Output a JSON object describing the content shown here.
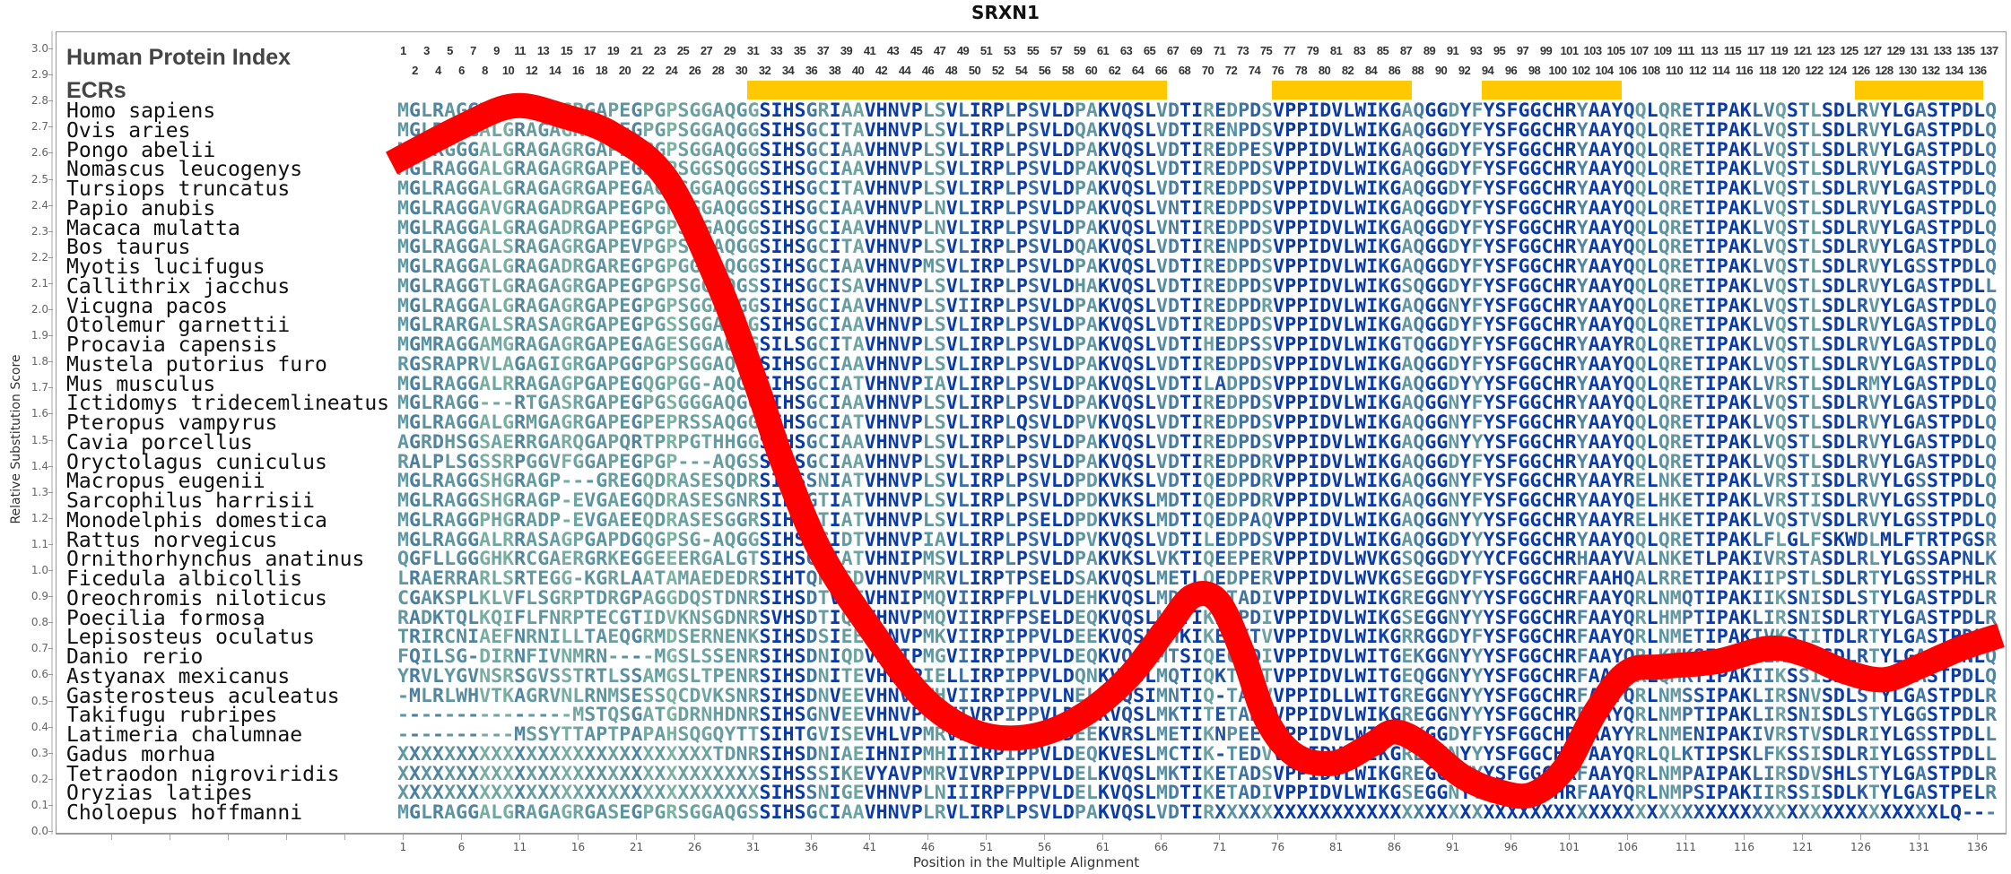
{
  "title": "SRXN1",
  "header": {
    "protein_index_label": "Human Protein Index",
    "ecr_label": "ECRs"
  },
  "alignment_length": 137,
  "colors": {
    "curve": "#FF0000",
    "ecr": "#FFC800",
    "low_conservation": "#8cc4a0",
    "mid_conservation": "#5a90a0",
    "high_conservation": "#0a3aa8"
  },
  "ecrs": [
    [
      31,
      66
    ],
    [
      76,
      87
    ],
    [
      94,
      105
    ],
    [
      126,
      136
    ]
  ],
  "species": [
    {
      "name": "Homo sapiens",
      "seq": "MGLRAGGTLGRAGAGRGAPEGPGPSGGAQGGSIHSGRIAAVHNVPLSVLIRPLPSVLDPAKVQSLVDTIREDPDSVPPIDVLWIKGAQGGDYFYSFGGCHRYAAYQQLQRETIPAKLVQSTLSDLRVYLGASTPDLQ"
    },
    {
      "name": "Ovis aries",
      "seq": "MGLRAGGALGRAGAGRGAPEGPGPSGGAQGGSIHSGCITAVHNVPLSVLIRPLPSVLDQAKVQSLVDTIRENPDSVPPIDVLWIKGAQGGDYFYSFGGCHRYAAYQQLQRETIPAKLVQSTLSDLRVYLGASTPDLQ"
    },
    {
      "name": "Pongo abelii",
      "seq": "MGLRGGGALGRAGAGRGAPEGPGPSGGAQGGSIHSGCIAAVHNVPLSVLIRPLPSVLDPAKVQSLVDTIREDPESVPPIDVLWIKGAQGGDYFYSFGGCHRYAAYQQLQRETIPAKLVQSTLSDLRVYLGASTPDLQ"
    },
    {
      "name": "Nomascus leucogenys",
      "seq": "MGLRAGGALGRAGAGRGAPEGPGPSGGSQGGSIHSGCIAAVHNVPLSVLIRPLPSVLDPAKVQSLVDTIREDPDSVPPIDVLWIKGAQGGDYFYSFGGCHRYAAYQQLQRETIPAKLVQSTLSDLRVYLGASTPDLQ"
    },
    {
      "name": "Tursiops truncatus",
      "seq": "MGLRAGGALGRAGAGRGAPEGAGQSGGAQGGSIHSGCITAVHNVPLSVLIRPLPSVLDPAKVQSLVDTIREDPDSVPPIDVLWIKGAQGGDYFYSFGGCHRYAAYQQLQRETIPAKLVQSTLSDLRVYLGASTPDLQ"
    },
    {
      "name": "Papio anubis",
      "seq": "MGLRAGGAVGRAGADRGAPEGPGPSGGAQGGSIHSGCIAAVHNVPLNVLIRPLPSVLDPAKVQSLVNTIREDPDSVPPIDVLWIKGAQGGDYFYSFGGCHRYAAYQQLQRETIPAKLVQSTLSDLRVYLGASTPDLQ"
    },
    {
      "name": "Macaca mulatta",
      "seq": "MGLRAGGALGRAGADRGAPEGPGPSGGAQGGSIHSGCIAAVHNVPLNVLIRPLPSVLDPAKVQSLVNTIREDPDSVPPIDVLWIKGAQGGDYFYSFGGCHRYAAYQQLQRETIPAKLVQSTLSDLRVYLGASTPDLQ"
    },
    {
      "name": "Bos taurus",
      "seq": "MGLRAGGALSRAGAGRGAPEVPGPSGGAQGGSIHSGCITAVHNVPLSVLIRPLPSVLDQAKVQSLVDTIRENPDSVPPIDVLWIKGAQGGDYFYSFGGCHRYAAYQQLQRETIPAKLVQSTLSDLRVYLGASTPDLQ"
    },
    {
      "name": "Myotis lucifugus",
      "seq": "MGLRAGGALGRAGADRGAREGPGPGGGAQGGSIHSGCIAAVHNVPMSVLIRPLPSVLDPAKVQSLVDTIREDPDSVPPIDVLWIKGAQGGDYFYSFGGCHRYAAYQQLQRETIPAKLVQSTLSDLRVYLGSSTPDLQ"
    },
    {
      "name": "Callithrix jacchus",
      "seq": "MGLRAGGTLGRAGAGRGAPEGPGPSGGAQGSSIHSGCISAVHNVPLSVLIRPLPSVLDHAKVQSLVDTIREDPDSVPPIDVLWIKGSQGGDYFYSFGGCHRYAAYQQLQRETIPAKLVQSTLSDLRVYLGASTPDLL"
    },
    {
      "name": "Vicugna pacos",
      "seq": "MGLRAGGALGRAGAGRGAPEGPGPSGGAQGGSIHSGCIAAVHNVPLSVIIRPLPSVLDPAKVQSLVDTIREDPDRVPPIDVLWIKGAQGGNYFYSFGGCHRYAAYQQLQRETIPAKLVQSTLSDLRVYLGASTPDLQ"
    },
    {
      "name": "Otolemur garnettii",
      "seq": "MGLRARGALSRASAGRGAPEGPGSSGGAHSGSIHSGCIAAVHNVPLSVLIRPLPSVLDPAKVQSLVDTIREDPDSVPPIDVLWIKGAQGGDYFYSFGGCHRYAAYQQLQRETIPAKLVQSTLSDLRVYLGASTPDLQ"
    },
    {
      "name": "Procavia capensis",
      "seq": "MGMRAGGAMGRAGAGRGAPEGAGESGGAQGGSILSGCITAVHNVPLSVLIRPLPSVLDPAKVQSLVDTIHEDPSSVPPIDVLWIKGTQGGDYFYSFGGCHRYAAYRQLQRETIPAKLVQSTLSDLRVYLGASTPDLQ"
    },
    {
      "name": "Mustela putorius furo",
      "seq": "RGSRAPRVLAGAGIGRGAPGGPGPSGGAQGGSIHSGCIAAVHNVPLSVLIRPLPSVLDPAKVQSLVDTIREDPDSVPPIDVLWIKGAQGGDYFYSFGGCHRYAAYQQLQRETIPAKLVQSTLSDLRVYLGASTPDLQ"
    },
    {
      "name": "Mus musculus",
      "seq": "MGLRAGGALRRAGAGPGAPEGQGPGG-AQGGSIHSGCIATVHNVPIAVLIRPLPSVLDPAKVQSLVDTILADPDSVPPIDVLWIKGAQGGDYYYSFGGCHRYAAYQQLQRETIPAKLVRSTLSDLRMYLGASTPDLQ"
    },
    {
      "name": "Ictidomys tridecemlineatus",
      "seq": "MGLRAGG---RTGASRGAPEGPGSGGGAQGGSIHSGCIAAVHNVPLSVLIRPLPSVLDPAKVQSLVDTIREDPDSVPPIDVLWIKGAQGGNYFYSFGGCHRYAAYQQLQRETIPAKLVQSTLSDLRVYLGASTPDLQ"
    },
    {
      "name": "Pteropus vampyrus",
      "seq": "MGLRAGGALGRMGAGRGAPEGPEPRSSAQGGSIHSGCIATVHNVPLSVLIRPLQSVLDPVKVQSLVDTIREDPDSVPPIDVLWIKGAQGGNYFYSFGGCHRYAAYQQLQRETIPAKLVQSTLSDLRVYLGASTPDLQ"
    },
    {
      "name": "Cavia porcellus",
      "seq": "AGRDHSGSAERRGARQGAPQRTPRPGTHHGGSIHSGCIAAVHNVPLSVLIRPLPSVLDPAKVQSLVDTIREDPDSVPPIDVLWIKGAQGGNYYYSFGGCHRYAAYQQLQRETIPAKLVQSTLSDLRVYLGASTPDLQ"
    },
    {
      "name": "Oryctolagus cuniculus",
      "seq": "RALPLSGSSRPGGVFGGAPEGPGP---AQGSSIHSGCIAAVHNVPLSVLIRPLPSVLDPAKVQSLVDTIREDPDRVPPIDVLWIKGAQGGDYFYSFGGCHRYAAYQQLQRETIPAKLVQSTLSDLRVYLGASTPDLQ"
    },
    {
      "name": "Macropus eugenii",
      "seq": "MGLRAGGSHGRAGP---GREGQDRASESQDRSIHSSNIATVHNVPLSVLIRPLPSVLDPDKVKSLVDTIQEDPDRVPPIDVLWIKGAQGGNYFYSFGGCHRYAAYRELNKETIPAKLVRSTISDLRVYLGSSTPDLQ"
    },
    {
      "name": "Sarcophilus harrisii",
      "seq": "MGLRAGGSHGRAGP-EVGAEGQDRASESGNRSIHSGTIATVHNVPLSVLIRPLPSVLDPDKVKSLMDTIQEDPDRVPPIDVLWIKGAQGGNYFYSFGGCHRYAAYQELHKETIPAKLVRSTISDLRVYLGSSTPDLQ"
    },
    {
      "name": "Monodelphis domestica",
      "seq": "MGLRAGGPHGRADP-EVGAEEQDRASESGGRSIHSGTIATVHNVPLSVLIRPLPSELDPDKVKSLMDTIQEDPAQVPPIDVLWIKGAQGGNYYYSFGGCHRYAAYRELHKETIPAKLVQSTVSDLRVYLGSSTPDLQ"
    },
    {
      "name": "Rattus norvegicus",
      "seq": "MGLRAGGALRRASAGPGAPDGQGPSG-AQGGSIHSGCIDTVHNVPIAVLIRPLPSVLDPVKVQSLVDTILEDPDSVPPIDVLWIKGAQGGDYYYSFGGCHRYAAYQQLQRETIPAKLFLGLFSKWDLMLFTRTPGSR"
    },
    {
      "name": "Ornithorhynchus anatinus",
      "seq": "QGFLLGGGHKRCGAERGRKEGGEEERGALGTSIHSGSIATVHNIPMSVLIRPLPSVLDPAKVKSLVKTIQEEPERVPPIDVLWVKGSQGGDYYYCFGGCHRHAAYVALNKETLPAKIVRSTASDLRLYLGSSAPNLK"
    },
    {
      "name": "Ficedula albicollis",
      "seq": "LRAERRARLSRTEGG-KGRLAATAMAEDEDRSIHTQHISDVHNVPMRVLIRPTPSELDSAKVQSLMETLQEDPERVPPIDVLWVKGSEGGDYFYSFGGCHRFAAHQALRRETIPAKIIPSTLSDLRTYLGSSTPHLR"
    },
    {
      "name": "Oreochromis niloticus",
      "seq": "CGAKSPLKLVFLSGRPTDRGPAGGDQSTDNRSIHSDTVEEVHNIPMQVIIRPFPLVLDEHKVQSLMDTIRETADIVPPIDVLWIKGREGGNYYYSFGGCHRFAAYQRLNMQTIPAKIIKSNISDLSTYLGASTPDLR"
    },
    {
      "name": "Poecilia formosa",
      "seq": "RADKTQLKQIFLFNRPTECGTIDVKNSGDNRSVHSDTIQEVHNVPMQVIIRPFPSELDEQKVQSLMDTIKETPDIVPPIDVLWIKGSEGGNYYYSFGGCHRFAAYQRLHMPTIPAKLIRSNISDLRTYLGASTPDLR"
    },
    {
      "name": "Lepisosteus oculatus",
      "seq": "TRIRCNIAEFNRNILLTAEQGRMDSERNENKSIHSDSIEEVHNVPMKVIIRPIPPVLDEEKVQSLMHKIKEPKTVVPPIDVLWIKGRRGGDYFYSFGGCHRFAAYQRLNMETIPAKIVKSTITDLRTYLGASTPDLQ"
    },
    {
      "name": "Danio rerio",
      "seq": "FQILSG-DIRNFIVNMRN----MGSLSSENRSIHSDNIQDVHNIPMGVIIRPIPPVLDEQKVQSLMTSIQECSDIVPPIDVLWITGEKGGNYYYSFGGCHRFAAYQRLKMKSIPAKIIKSNISDLRTYLGASTPNLQ"
    },
    {
      "name": "Astyanax mexicanus",
      "seq": "YRVLYGVNSRSGVSSTRTLSSAMGSLTPENRSIHSDNITEVHLIPIELLIRPIPPVLDQNKVQSLMQTIQKTSDTVPPIDVLWITGEQGGNYYYSFGGCHRFAAYQRLQMKTIPAKIIKSSISDLRTYLGASTPDLQ"
    },
    {
      "name": "Gasterosteus aculeatus",
      "seq": "-MLRLWHVTKAGRVNLRNMSESSQCDVKSNRSIHSDNVEEVHNVPMHVIIRPIPPVLNELKVQSIMNTIQ-TADVVPPIDLLWITGREGGNYYYSFGGCHRFAAYQRLNMSSIPAKLIRSNVSDLSTYLGASTPDLR"
    },
    {
      "name": "Takifugu rubripes",
      "seq": "---------------MSTQSGATGDRNHDNRSIHSGNVEEVHNVPMQVIVRPIPPVLDEQKVQSLMKTITETADLVPPIDVLWIKGREGGNYYYSFGGCHRFAAYQRLNMPTIPAKLIRSNISDLSTYLGGSTPDLR"
    },
    {
      "name": "Latimeria chalumnae",
      "seq": "----------MSSYTTAPTPAPAHSQGQYTTSIHTGVISEVHLVPMRVLLRPFPPELDEEKVRSLMETIKNPEEVVPPIDVLWIKGRKGGDYFYSFGGCHRYAAYYRLNMENIPAKIVRSTVSDLRIYLGSSTPDLL"
    },
    {
      "name": "Gadus morhua",
      "seq": "XXXXXXXXXXXXXXXXXXXXXXXXXXXTDNRSIHSDNIAEIHNIPMHIIIRPIPPVLDEQKVESLMCTIK-TEDVVPPIDVLWIKGREGGNYYYSFGGCHRFAAYQRLQLKTIPSKLFKSSISDLRIYLGSSTPDLL"
    },
    {
      "name": "Tetraodon nigroviridis",
      "seq": "XXXXXXXXXXXXXXXXXXXXXXXXXXXXXXXSIHSSSIKEVYAVPMRVIVRPIPPVLDELKVQSLMKTIKETADSVPPIDVLWIKGREGGDYYYSFGGCHRFAAYQRLNMPAIPAKLIRSDVSHLSTYLGASTPDLR"
    },
    {
      "name": "Oryzias latipes",
      "seq": "XXXXXXXXXXXXXXXXXXXXXXXXXXXXXXXSIHSSNIGEVHNVPLNIIIRPFPPVLDELKVQSLMDTIKETADIVPPIDVLWIKGSEGGNYYYSFGGCHRFAAYQRLNMPSIPAKIIRSSISDLKTYLGASTPELR"
    },
    {
      "name": "Choloepus hoffmanni",
      "seq": "MGLRAGGALGRAGAGRGASEGPGRSGGAQGSSIHSGCIAAVHNVPLRVLIRPLPSVLDPAKVQSLVDTIRXXXXXXXXXXXXXXXXXXXXXXXXXXXXXXXXXXXXXXXXXXXXXXXXXXXXXXXXXXXXXXLQ---"
    }
  ],
  "chart_data": {
    "type": "line",
    "title": "SRXN1",
    "xlabel": "Position in the Multiple Alignment",
    "ylabel": "Relative Substitution Score",
    "xlim": [
      1,
      137
    ],
    "ylim": [
      0.0,
      3.0
    ],
    "yticks": [
      "0.0",
      "0.1",
      "0.2",
      "0.3",
      "0.4",
      "0.5",
      "0.6",
      "0.7",
      "0.8",
      "0.9",
      "1.0",
      "1.1",
      "1.2",
      "1.3",
      "1.4",
      "1.5",
      "1.6",
      "1.7",
      "1.8",
      "1.9",
      "2.0",
      "2.1",
      "2.2",
      "2.3",
      "2.4",
      "2.5",
      "2.6",
      "2.7",
      "2.8",
      "2.9",
      "3.0"
    ],
    "xticks": [
      "1",
      "6",
      "11",
      "16",
      "21",
      "26",
      "31",
      "36",
      "41",
      "46",
      "51",
      "56",
      "61",
      "66",
      "71",
      "76",
      "81",
      "86",
      "91",
      "96",
      "101",
      "106",
      "111",
      "116",
      "121",
      "126",
      "131",
      "136"
    ],
    "grid": false,
    "series": [
      {
        "x": [
          0,
          6,
          10.5,
          14.8,
          19,
          23.6,
          28,
          31.3,
          33.5,
          36.8,
          41,
          45.6,
          50,
          54.4,
          58.8,
          63,
          66.5,
          68.7,
          70.9,
          73,
          75,
          77.5,
          80.8,
          84,
          86,
          88.5,
          91.8,
          95,
          97.8,
          100.6,
          103.3,
          106,
          109,
          113.7,
          118,
          121,
          124.7,
          128,
          131,
          134.6,
          138
        ],
        "y": [
          2.56,
          2.7,
          2.78,
          2.74,
          2.67,
          2.5,
          2.1,
          1.71,
          1.42,
          1.07,
          0.78,
          0.51,
          0.38,
          0.36,
          0.43,
          0.58,
          0.78,
          0.9,
          0.88,
          0.68,
          0.43,
          0.29,
          0.26,
          0.33,
          0.38,
          0.33,
          0.21,
          0.15,
          0.14,
          0.24,
          0.46,
          0.61,
          0.63,
          0.65,
          0.7,
          0.68,
          0.61,
          0.58,
          0.63,
          0.7,
          0.75
        ]
      }
    ]
  }
}
